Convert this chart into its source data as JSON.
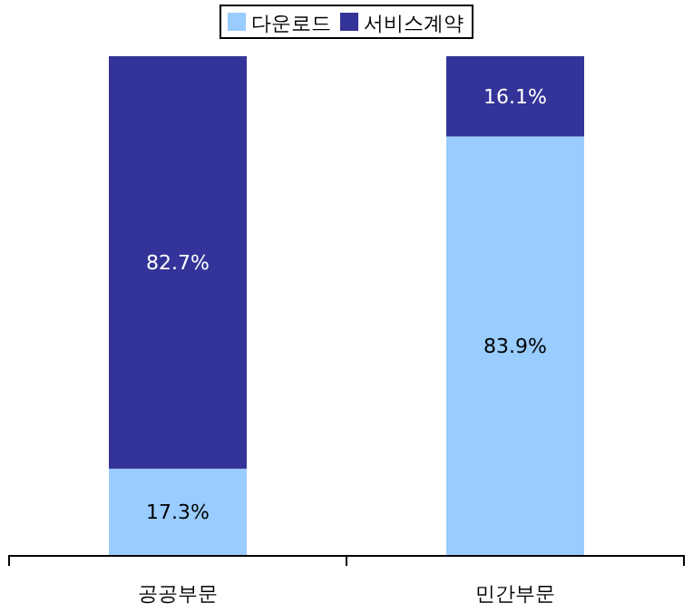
{
  "chart_data": {
    "type": "bar",
    "stacked": true,
    "categories": [
      "공공부문",
      "민간부문"
    ],
    "legend": "top",
    "series": [
      {
        "name": "다운로드",
        "color": "#99ccff",
        "values": [
          17.3,
          83.9
        ],
        "value_labels": [
          "17.3%",
          "83.9%"
        ]
      },
      {
        "name": "서비스계약",
        "color": "#333399",
        "values": [
          82.7,
          16.1
        ],
        "value_labels": [
          "82.7%",
          "16.1%"
        ]
      }
    ]
  }
}
